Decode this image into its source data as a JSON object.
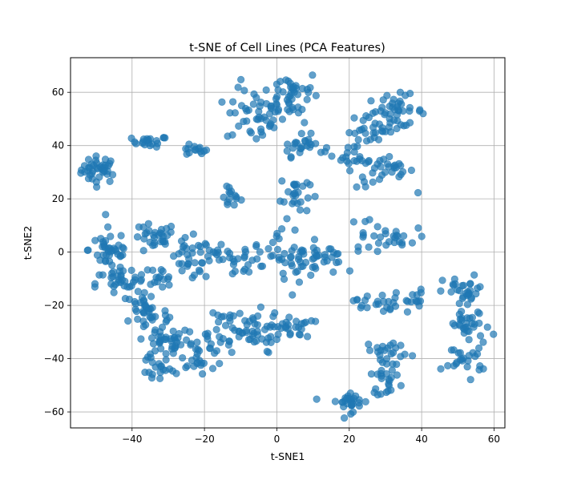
{
  "chart_data": {
    "type": "scatter",
    "title": "t-SNE of Cell Lines (PCA Features)",
    "xlabel": "t-SNE1",
    "ylabel": "t-SNE2",
    "xlim": [
      -57,
      63
    ],
    "ylim": [
      -66,
      73
    ],
    "xticks": [
      -40,
      -20,
      0,
      20,
      40,
      60
    ],
    "yticks": [
      -60,
      -40,
      -20,
      0,
      20,
      40,
      60
    ],
    "xtick_labels": [
      "−40",
      "−20",
      "0",
      "20",
      "40",
      "60"
    ],
    "ytick_labels": [
      "−60",
      "−40",
      "−20",
      "0",
      "20",
      "40",
      "60"
    ],
    "grid": true,
    "color": "#1f77b4",
    "clusters": [
      {
        "c": [
          -49,
          31
        ],
        "s": [
          2.5,
          2.5
        ],
        "n": 40
      },
      {
        "c": [
          -35,
          41.5
        ],
        "s": [
          2.5,
          1
        ],
        "n": 20
      },
      {
        "c": [
          -23,
          38
        ],
        "s": [
          2,
          1
        ],
        "n": 14
      },
      {
        "c": [
          -13,
          21
        ],
        "s": [
          1.5,
          2.5
        ],
        "n": 14
      },
      {
        "c": [
          -6,
          51
        ],
        "s": [
          4,
          5
        ],
        "n": 45
      },
      {
        "c": [
          4,
          59
        ],
        "s": [
          4,
          5
        ],
        "n": 45
      },
      {
        "c": [
          7,
          40
        ],
        "s": [
          3,
          2
        ],
        "n": 25
      },
      {
        "c": [
          5,
          22
        ],
        "s": [
          2,
          4
        ],
        "n": 25
      },
      {
        "c": [
          22,
          37
        ],
        "s": [
          3,
          3
        ],
        "n": 20
      },
      {
        "c": [
          26,
          46
        ],
        "s": [
          3,
          3
        ],
        "n": 25
      },
      {
        "c": [
          33,
          53
        ],
        "s": [
          4,
          3
        ],
        "n": 40
      },
      {
        "c": [
          30,
          30
        ],
        "s": [
          4,
          3
        ],
        "n": 30
      },
      {
        "c": [
          -46,
          1
        ],
        "s": [
          3,
          4
        ],
        "n": 40
      },
      {
        "c": [
          -34,
          5
        ],
        "s": [
          3,
          3
        ],
        "n": 30
      },
      {
        "c": [
          -24,
          -3
        ],
        "s": [
          3,
          4
        ],
        "n": 30
      },
      {
        "c": [
          -16,
          -1
        ],
        "s": [
          3,
          3
        ],
        "n": 15
      },
      {
        "c": [
          -9,
          -3
        ],
        "s": [
          3,
          3
        ],
        "n": 20
      },
      {
        "c": [
          1,
          3
        ],
        "s": [
          3,
          4
        ],
        "n": 20
      },
      {
        "c": [
          6,
          -4
        ],
        "s": [
          3,
          3
        ],
        "n": 25
      },
      {
        "c": [
          13,
          -2
        ],
        "s": [
          3,
          3
        ],
        "n": 25
      },
      {
        "c": [
          26,
          7
        ],
        "s": [
          3,
          3
        ],
        "n": 15
      },
      {
        "c": [
          33,
          5
        ],
        "s": [
          3,
          2
        ],
        "n": 15
      },
      {
        "c": [
          -44,
          -12
        ],
        "s": [
          3,
          3
        ],
        "n": 30
      },
      {
        "c": [
          -36,
          -22
        ],
        "s": [
          3,
          4
        ],
        "n": 35
      },
      {
        "c": [
          -30,
          -33
        ],
        "s": [
          4,
          4
        ],
        "n": 40
      },
      {
        "c": [
          -22,
          -38
        ],
        "s": [
          4,
          4
        ],
        "n": 40
      },
      {
        "c": [
          -16,
          -28
        ],
        "s": [
          3,
          4
        ],
        "n": 20
      },
      {
        "c": [
          -7,
          -30
        ],
        "s": [
          4,
          4
        ],
        "n": 40
      },
      {
        "c": [
          4,
          -28
        ],
        "s": [
          3,
          2
        ],
        "n": 25
      },
      {
        "c": [
          27,
          -19
        ],
        "s": [
          3,
          2
        ],
        "n": 20
      },
      {
        "c": [
          37,
          -18
        ],
        "s": [
          2,
          2
        ],
        "n": 15
      },
      {
        "c": [
          52,
          -15
        ],
        "s": [
          3,
          3
        ],
        "n": 30
      },
      {
        "c": [
          53,
          -28
        ],
        "s": [
          3,
          3
        ],
        "n": 30
      },
      {
        "c": [
          52,
          -40
        ],
        "s": [
          3,
          3
        ],
        "n": 25
      },
      {
        "c": [
          31,
          -37
        ],
        "s": [
          3,
          2
        ],
        "n": 20
      },
      {
        "c": [
          30,
          -47
        ],
        "s": [
          2,
          3
        ],
        "n": 25
      },
      {
        "c": [
          20,
          -56
        ],
        "s": [
          3,
          2
        ],
        "n": 30
      },
      {
        "c": [
          -33,
          -45
        ],
        "s": [
          2,
          2
        ],
        "n": 12
      },
      {
        "c": [
          -35,
          -10
        ],
        "s": [
          3,
          2
        ],
        "n": 20
      }
    ]
  }
}
